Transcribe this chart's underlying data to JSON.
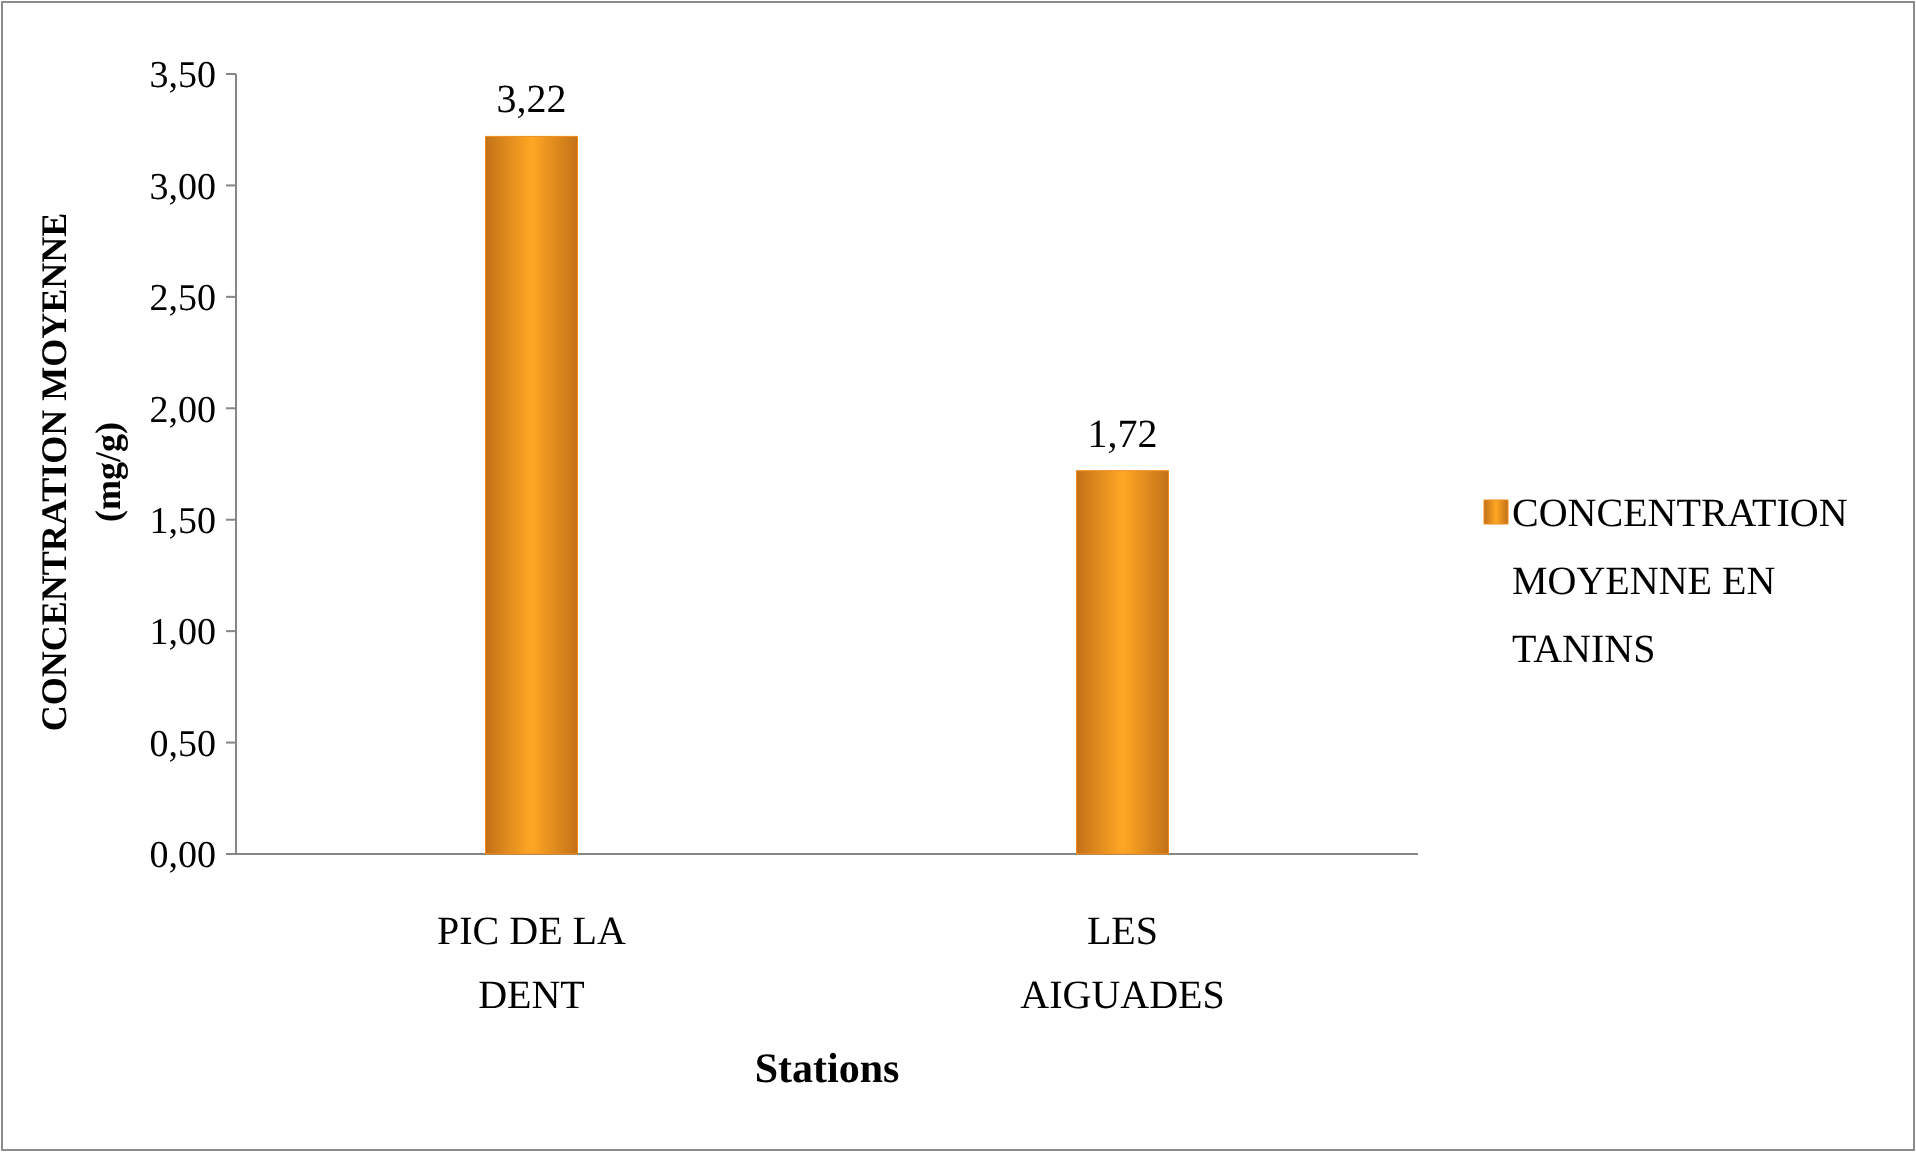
{
  "chart_data": {
    "type": "bar",
    "xlabel": "Stations",
    "ylabel": "CONCENTRATION MOYENNE (mg/g)",
    "categories": [
      "PIC DE LA DENT",
      "LES AIGUADES"
    ],
    "series": [
      {
        "name": "CONCENTRATION MOYENNE EN TANINS",
        "color": "#f28c1e",
        "values": [
          3.22,
          1.72
        ],
        "value_labels": [
          "3,22",
          "1,72"
        ]
      }
    ],
    "ylim": [
      0,
      3.5
    ],
    "yticks": [
      {
        "value": 0,
        "label": "0,00"
      },
      {
        "value": 0.5,
        "label": "0,50"
      },
      {
        "value": 1,
        "label": "1,00"
      },
      {
        "value": 1.5,
        "label": "1,50"
      },
      {
        "value": 2,
        "label": "2,00"
      },
      {
        "value": 2.5,
        "label": "2,50"
      },
      {
        "value": 3,
        "label": "3,00"
      },
      {
        "value": 3.5,
        "label": "3,50"
      }
    ],
    "legend": "right",
    "grid": false
  }
}
